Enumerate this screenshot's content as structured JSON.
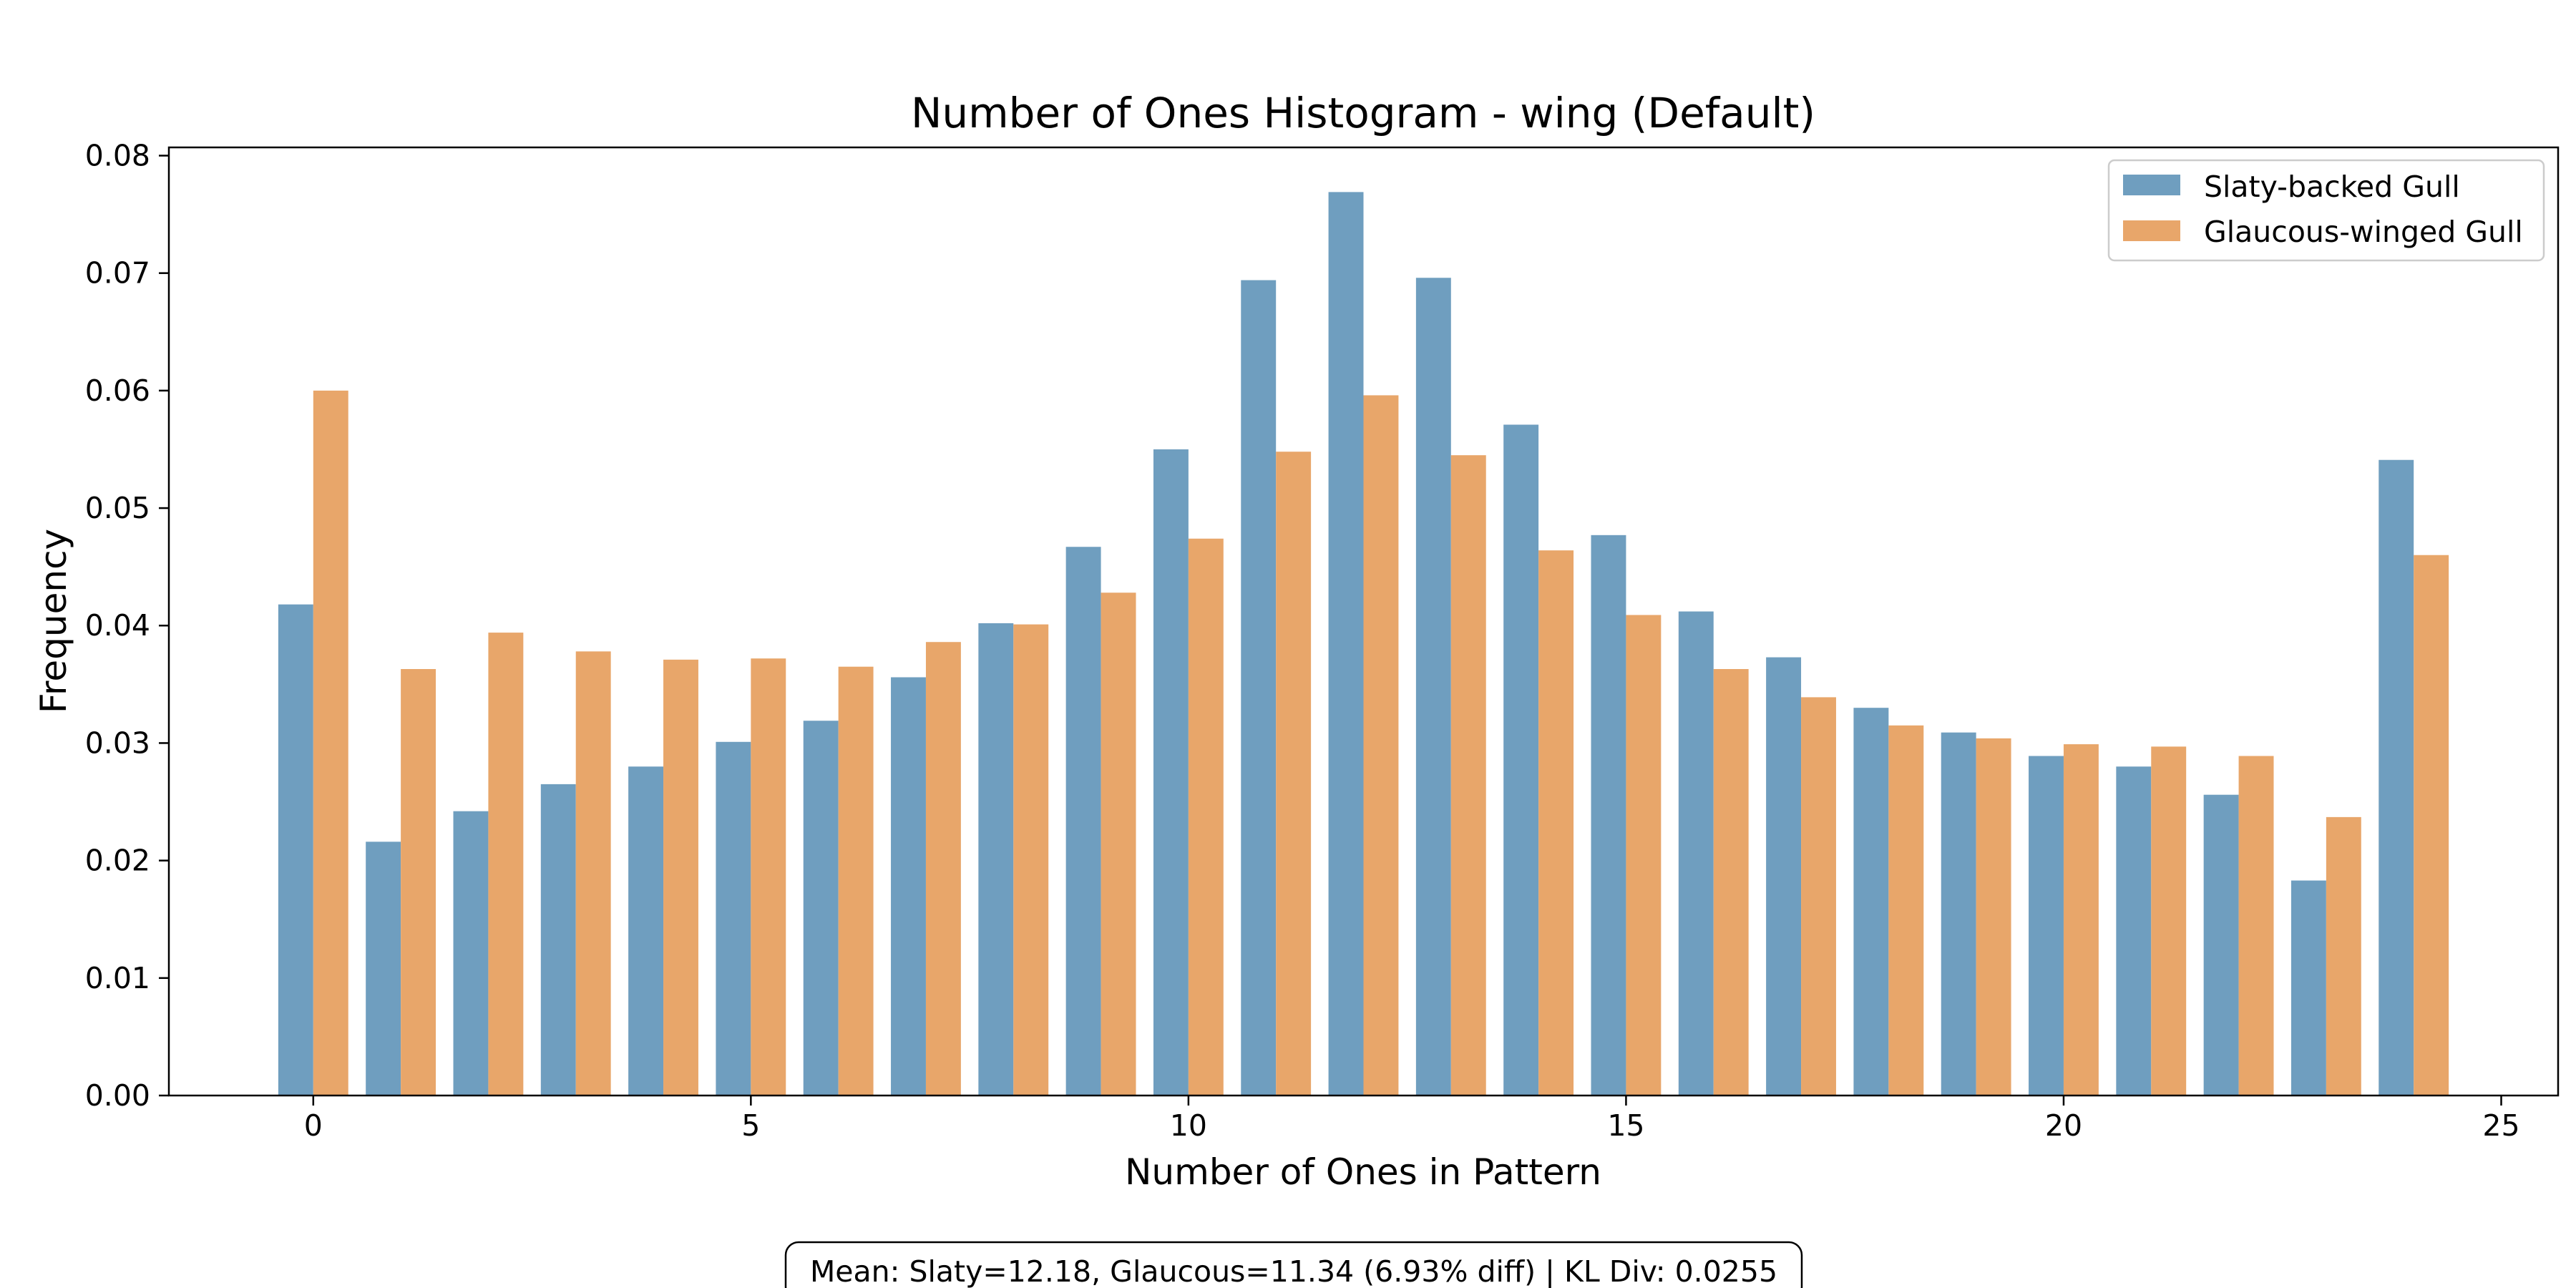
{
  "chart_data": {
    "type": "bar",
    "title": "Number of Ones Histogram - wing (Default)",
    "xlabel": "Number of Ones in Pattern",
    "ylabel": "Frequency",
    "x": [
      0,
      1,
      2,
      3,
      4,
      5,
      6,
      7,
      8,
      9,
      10,
      11,
      12,
      13,
      14,
      15,
      16,
      17,
      18,
      19,
      20,
      21,
      22,
      23,
      24
    ],
    "xlim": [
      -1.65,
      25.65
    ],
    "ylim": [
      0,
      0.0807
    ],
    "xticks": [
      0,
      5,
      10,
      15,
      20,
      25
    ],
    "xtick_labels": [
      "0",
      "5",
      "10",
      "15",
      "20",
      "25"
    ],
    "yticks": [
      0,
      0.01,
      0.02,
      0.03,
      0.04,
      0.05,
      0.06,
      0.07,
      0.08
    ],
    "ytick_labels": [
      "0.00",
      "0.01",
      "0.02",
      "0.03",
      "0.04",
      "0.05",
      "0.06",
      "0.07",
      "0.08"
    ],
    "grid": false,
    "legend_position": "top-right",
    "series": [
      {
        "name": "Slaty-backed Gull",
        "color": "#6f9ebf",
        "values": [
          0.0418,
          0.0216,
          0.0242,
          0.0265,
          0.028,
          0.0301,
          0.0319,
          0.0356,
          0.0402,
          0.0467,
          0.055,
          0.0694,
          0.0769,
          0.0696,
          0.0571,
          0.0477,
          0.0412,
          0.0373,
          0.033,
          0.0309,
          0.0289,
          0.028,
          0.0256,
          0.0183,
          0.0541
        ]
      },
      {
        "name": "Glaucous-winged Gull",
        "color": "#e8a66a",
        "values": [
          0.06,
          0.0363,
          0.0394,
          0.0378,
          0.0371,
          0.0372,
          0.0365,
          0.0386,
          0.0401,
          0.0428,
          0.0474,
          0.0548,
          0.0596,
          0.0545,
          0.0464,
          0.0409,
          0.0363,
          0.0339,
          0.0315,
          0.0304,
          0.0299,
          0.0297,
          0.0289,
          0.0237,
          0.046
        ]
      }
    ],
    "annotation": "Mean: Slaty=12.18, Glaucous=11.34 (6.93% diff) | KL Div: 0.0255"
  }
}
